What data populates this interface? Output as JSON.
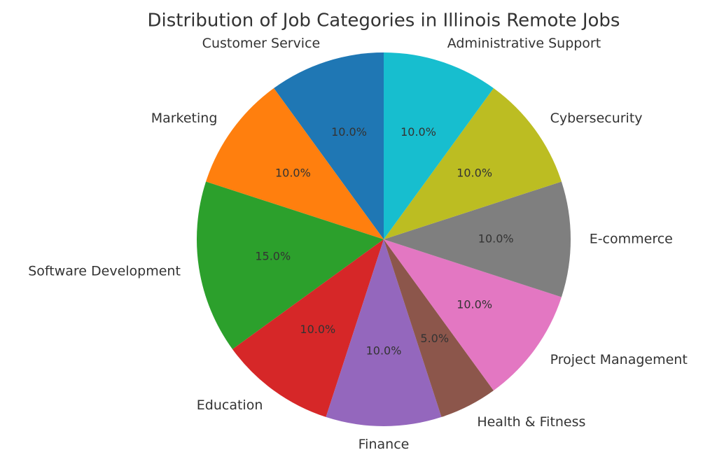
{
  "chart_data": {
    "type": "pie",
    "title": "Distribution of Job Categories in Illinois Remote Jobs",
    "categories": [
      "Customer Service",
      "Marketing",
      "Software Development",
      "Education",
      "Finance",
      "Health & Fitness",
      "Project Management",
      "E-commerce",
      "Cybersecurity",
      "Administrative Support"
    ],
    "values": [
      10,
      10,
      15,
      10,
      10,
      5,
      10,
      10,
      10,
      10
    ],
    "value_labels": [
      "10.0%",
      "10.0%",
      "15.0%",
      "10.0%",
      "10.0%",
      "5.0%",
      "10.0%",
      "10.0%",
      "10.0%",
      "10.0%"
    ],
    "colors": [
      "#1f77b4",
      "#ff7f0e",
      "#2ca02c",
      "#d62728",
      "#9467bd",
      "#8c564b",
      "#e377c2",
      "#7f7f7f",
      "#bcbd22",
      "#17becf"
    ]
  }
}
